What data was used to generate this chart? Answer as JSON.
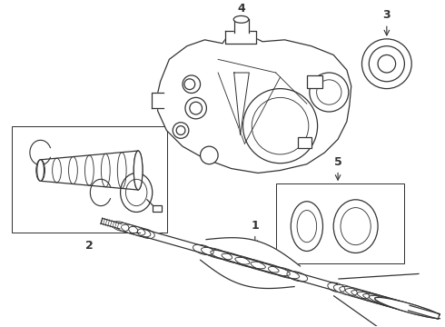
{
  "background_color": "#ffffff",
  "line_color": "#333333",
  "line_width": 0.9,
  "figsize": [
    4.9,
    3.6
  ],
  "dpi": 100,
  "label_fontsize": 9
}
